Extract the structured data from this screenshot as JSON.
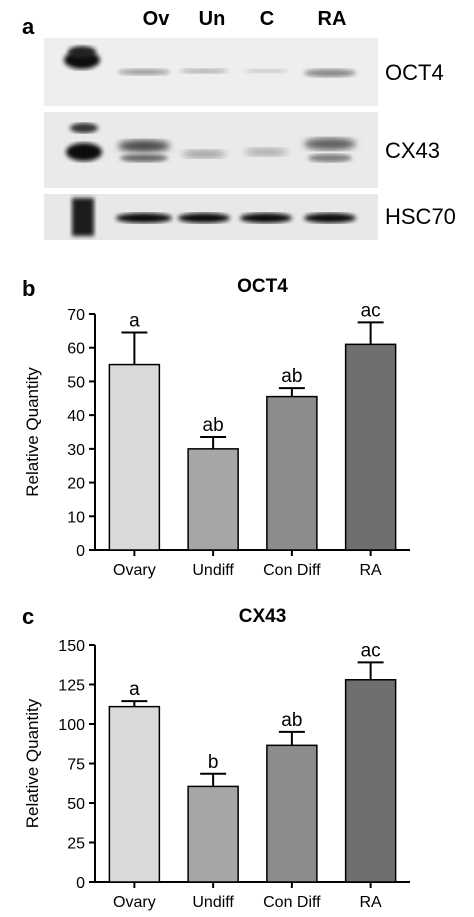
{
  "panels": {
    "a": "a",
    "b": "b",
    "c": "c"
  },
  "blot": {
    "lanes": [
      "Ov",
      "Un",
      "C",
      "RA"
    ],
    "proteins": [
      "OCT4",
      "CX43",
      "HSC70"
    ]
  },
  "chart_data": [
    {
      "type": "bar",
      "title": "OCT4",
      "ylabel": "Relative Quantity",
      "xlabel": "",
      "categories": [
        "Ovary",
        "Undiff",
        "Con Diff",
        "RA"
      ],
      "values": [
        55,
        30,
        45.5,
        61
      ],
      "errors": [
        9.5,
        3.5,
        2.5,
        6.5
      ],
      "letters": [
        "a",
        "ab",
        "ab",
        "ac"
      ],
      "ylim": [
        0,
        70
      ],
      "yticks": [
        0,
        10,
        20,
        30,
        40,
        50,
        60,
        70
      ],
      "colors": [
        "#d9d9d9",
        "#a6a6a6",
        "#8c8c8c",
        "#6f6f6f"
      ],
      "grid": false
    },
    {
      "type": "bar",
      "title": "CX43",
      "ylabel": "Relative Quantity",
      "xlabel": "",
      "categories": [
        "Ovary",
        "Undiff",
        "Con Diff",
        "RA"
      ],
      "values": [
        111,
        60.5,
        86.5,
        128
      ],
      "errors": [
        3.5,
        8,
        8.5,
        11
      ],
      "letters": [
        "a",
        "b",
        "ab",
        "ac"
      ],
      "ylim": [
        0,
        150
      ],
      "yticks": [
        0,
        25,
        50,
        75,
        100,
        125,
        150
      ],
      "colors": [
        "#d9d9d9",
        "#a6a6a6",
        "#8c8c8c",
        "#6f6f6f"
      ],
      "grid": false
    }
  ]
}
